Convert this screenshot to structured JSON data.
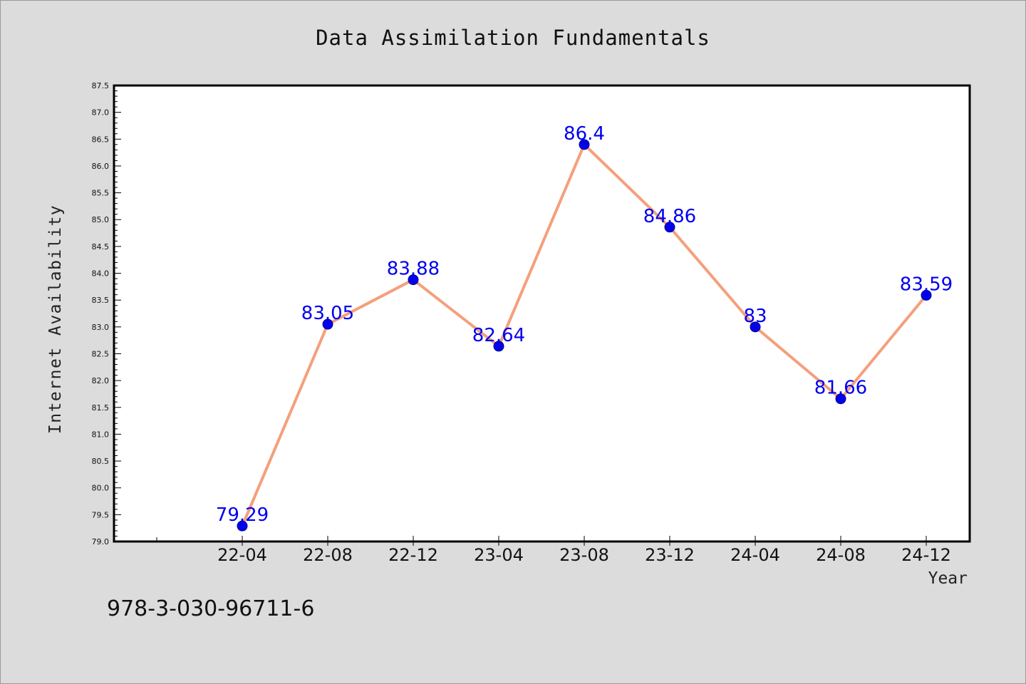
{
  "chart_data": {
    "type": "line",
    "title": "Data Assimilation Fundamentals",
    "xlabel": "Year",
    "ylabel": "Internet Availability",
    "categories": [
      "22-04",
      "22-08",
      "22-12",
      "23-04",
      "23-08",
      "23-12",
      "24-04",
      "24-08",
      "24-12"
    ],
    "series": [
      {
        "values": [
          79.29,
          83.05,
          83.88,
          82.64,
          86.4,
          84.86,
          83,
          81.66,
          83.59
        ],
        "labels": [
          "79.29",
          "83.05",
          "83.88",
          "82.64",
          "86.4",
          "84.86",
          "83",
          "81.66",
          "83.59"
        ],
        "line_color": "#f4a07c",
        "marker_color": "#0000ee"
      }
    ],
    "ylim": [
      79.0,
      87.5
    ],
    "yticks": [
      "79.0",
      "79.5",
      "80.0",
      "80.5",
      "81.0",
      "81.5",
      "82.0",
      "82.5",
      "83.0",
      "83.5",
      "84.0",
      "84.5",
      "85.0",
      "85.5",
      "86.0",
      "86.5",
      "87.0",
      "87.5"
    ],
    "grid": false,
    "legend": "none"
  },
  "footnote": "978-3-030-96711-6",
  "colors": {
    "background": "#dcdcdc",
    "plot_area": "#ffffff"
  }
}
